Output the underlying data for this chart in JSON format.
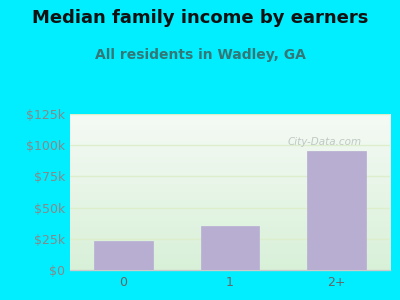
{
  "title": "Median family income by earners",
  "subtitle": "All residents in Wadley, GA",
  "categories": [
    "0",
    "1",
    "2+"
  ],
  "values": [
    23000,
    35000,
    95000
  ],
  "bar_color": "#b8aed2",
  "background_outer": "#00eeff",
  "background_plot_top": "#f5faf5",
  "background_plot_bottom": "#d8f0d8",
  "title_color": "#111111",
  "subtitle_color": "#337777",
  "ytick_color": "#888888",
  "xtick_color": "#666666",
  "ylim": [
    0,
    125000
  ],
  "yticks": [
    0,
    25000,
    50000,
    75000,
    100000,
    125000
  ],
  "ytick_labels": [
    "$0",
    "$25k",
    "$50k",
    "$75k",
    "$100k",
    "$125k"
  ],
  "watermark": "City-Data.com",
  "title_fontsize": 13,
  "subtitle_fontsize": 10,
  "tick_fontsize": 9,
  "grid_color": "#ddeecc",
  "spine_bottom_color": "#cccccc"
}
